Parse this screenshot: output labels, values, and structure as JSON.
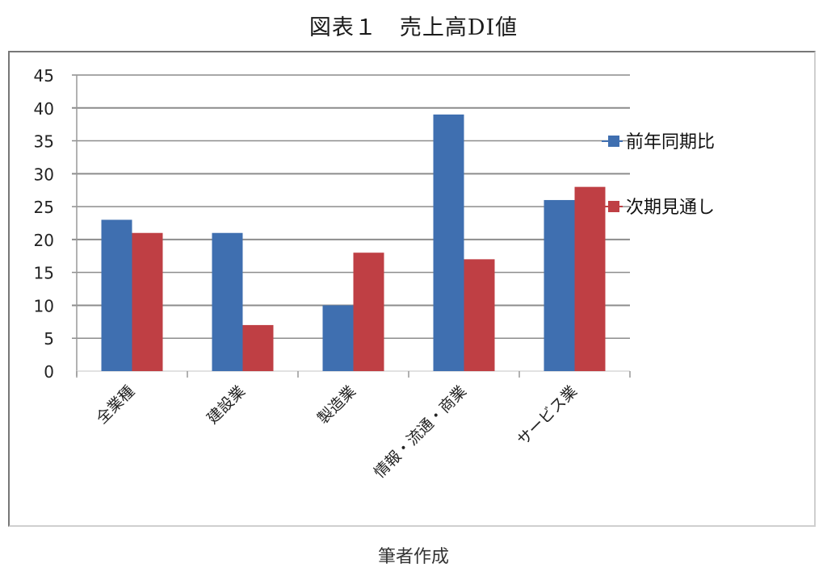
{
  "title": "図表１　売上高DI値",
  "footer": "筆者作成",
  "colors": {
    "series1": "#3F6FB0",
    "series2": "#BF3F44",
    "grid": "#8c8c8c",
    "axis": "#999999"
  },
  "chart_data": {
    "type": "bar",
    "title": "図表１　売上高DI値",
    "xlabel": "",
    "ylabel": "",
    "ylim": [
      0,
      45
    ],
    "yticks": [
      0,
      5,
      10,
      15,
      20,
      25,
      30,
      35,
      40,
      45
    ],
    "grid": true,
    "legend_position": "right",
    "categories": [
      "全業種",
      "建設業",
      "製造業",
      "情報・流通・商業",
      "サービス業"
    ],
    "series": [
      {
        "name": "前年同期比",
        "color": "#3F6FB0",
        "values": [
          23,
          21,
          10,
          39,
          26
        ]
      },
      {
        "name": "次期見通し",
        "color": "#BF3F44",
        "values": [
          21,
          7,
          18,
          17,
          28
        ]
      }
    ]
  }
}
